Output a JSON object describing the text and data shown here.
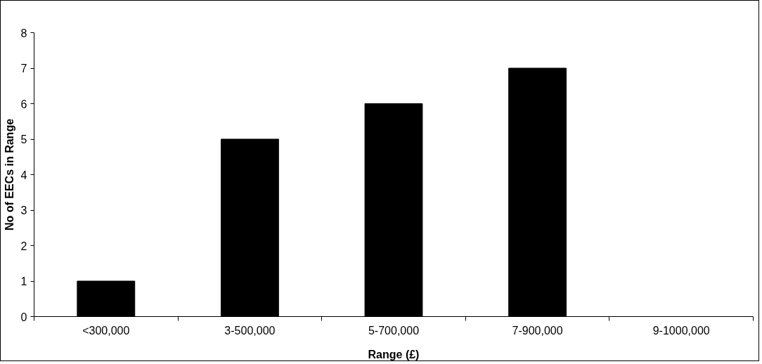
{
  "chart_data": {
    "type": "bar",
    "xlabel": "Range (£)",
    "ylabel": "No of EECs in Range",
    "categories": [
      "<300,000",
      "3-500,000",
      "5-700,000",
      "7-900,000",
      "9-1000,000"
    ],
    "values": [
      1,
      5,
      6,
      7,
      0
    ],
    "color": "#000000",
    "ylim": [
      0,
      8
    ],
    "yticks": [
      0,
      1,
      2,
      3,
      4,
      5,
      6,
      7,
      8
    ],
    "grid": false
  }
}
